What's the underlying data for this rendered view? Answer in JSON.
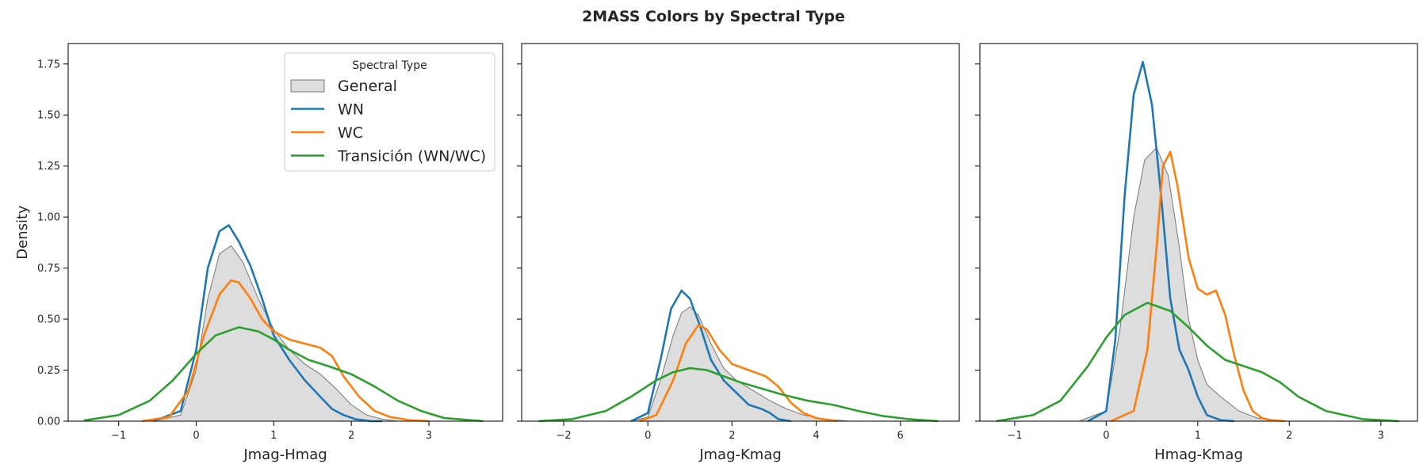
{
  "figure_title": "2MASS Colors by Spectral Type",
  "chart_data": [
    {
      "type": "area",
      "title": "",
      "xlabel": "Jmag-Hmag",
      "ylabel": "Density",
      "xlim": [
        -1.65,
        3.95
      ],
      "ylim": [
        0,
        1.85
      ],
      "xticks": [
        -1,
        0,
        1,
        2,
        3
      ],
      "yticks": [
        0.0,
        0.25,
        0.5,
        0.75,
        1.0,
        1.25,
        1.5,
        1.75
      ],
      "grid": false,
      "legend": {
        "title": "Spectral Type",
        "placement": "top-right"
      },
      "series": [
        {
          "name": "General",
          "fill": true,
          "x": [
            -0.55,
            -0.2,
            0.0,
            0.15,
            0.3,
            0.45,
            0.6,
            0.8,
            1.0,
            1.2,
            1.4,
            1.6,
            1.8,
            2.0,
            2.2,
            2.4,
            2.6
          ],
          "y": [
            0,
            0.03,
            0.25,
            0.6,
            0.82,
            0.86,
            0.78,
            0.6,
            0.45,
            0.35,
            0.28,
            0.23,
            0.16,
            0.08,
            0.03,
            0.01,
            0
          ]
        },
        {
          "name": "WN",
          "fill": false,
          "x": [
            -0.55,
            -0.2,
            0.0,
            0.15,
            0.3,
            0.42,
            0.55,
            0.7,
            0.85,
            1.0,
            1.2,
            1.4,
            1.6,
            1.75,
            1.9,
            2.05,
            2.25,
            2.4
          ],
          "y": [
            0,
            0.05,
            0.35,
            0.75,
            0.93,
            0.96,
            0.88,
            0.76,
            0.6,
            0.42,
            0.3,
            0.2,
            0.12,
            0.06,
            0.03,
            0.01,
            0,
            0
          ]
        },
        {
          "name": "WC",
          "fill": false,
          "x": [
            -0.7,
            -0.35,
            -0.1,
            0.1,
            0.3,
            0.45,
            0.55,
            0.7,
            0.85,
            1.0,
            1.2,
            1.4,
            1.6,
            1.75,
            1.9,
            2.1,
            2.3,
            2.5,
            2.75,
            3.0
          ],
          "y": [
            0,
            0.02,
            0.15,
            0.42,
            0.62,
            0.69,
            0.68,
            0.6,
            0.5,
            0.44,
            0.4,
            0.38,
            0.36,
            0.32,
            0.22,
            0.12,
            0.05,
            0.02,
            0.005,
            0
          ]
        },
        {
          "name": "Transición (WN/WC)",
          "fill": false,
          "x": [
            -1.45,
            -1.0,
            -0.6,
            -0.3,
            0.0,
            0.25,
            0.55,
            0.8,
            1.0,
            1.2,
            1.45,
            1.7,
            2.0,
            2.3,
            2.6,
            2.9,
            3.2,
            3.7
          ],
          "y": [
            0.003,
            0.03,
            0.1,
            0.2,
            0.33,
            0.42,
            0.46,
            0.44,
            0.4,
            0.35,
            0.3,
            0.27,
            0.23,
            0.17,
            0.1,
            0.05,
            0.015,
            0
          ]
        }
      ]
    },
    {
      "type": "area",
      "title": "",
      "xlabel": "Jmag-Kmag",
      "ylabel": "",
      "xlim": [
        -3.0,
        7.4
      ],
      "ylim": [
        0,
        1.85
      ],
      "xticks": [
        -2,
        0,
        2,
        4,
        6
      ],
      "yticks": [
        0.0,
        0.25,
        0.5,
        0.75,
        1.0,
        1.25,
        1.5,
        1.75
      ],
      "grid": false,
      "series": [
        {
          "name": "General",
          "fill": true,
          "x": [
            -0.4,
            0.0,
            0.3,
            0.6,
            0.8,
            1.0,
            1.2,
            1.5,
            1.8,
            2.1,
            2.5,
            2.9,
            3.3,
            3.7,
            4.2,
            4.8
          ],
          "y": [
            0,
            0.02,
            0.2,
            0.42,
            0.53,
            0.56,
            0.52,
            0.38,
            0.26,
            0.2,
            0.15,
            0.1,
            0.06,
            0.03,
            0.01,
            0
          ]
        },
        {
          "name": "WN",
          "fill": false,
          "x": [
            -0.4,
            0.0,
            0.3,
            0.55,
            0.8,
            1.0,
            1.25,
            1.5,
            1.8,
            2.1,
            2.4,
            2.7,
            2.9,
            3.1,
            3.4
          ],
          "y": [
            0,
            0.04,
            0.3,
            0.55,
            0.64,
            0.6,
            0.46,
            0.3,
            0.2,
            0.14,
            0.08,
            0.06,
            0.04,
            0.01,
            0
          ]
        },
        {
          "name": "WC",
          "fill": false,
          "x": [
            -0.2,
            0.2,
            0.6,
            0.9,
            1.2,
            1.4,
            1.7,
            2.0,
            2.4,
            2.8,
            3.1,
            3.4,
            3.7,
            4.0,
            4.5
          ],
          "y": [
            0,
            0.03,
            0.2,
            0.38,
            0.47,
            0.45,
            0.35,
            0.28,
            0.25,
            0.22,
            0.17,
            0.09,
            0.04,
            0.015,
            0
          ]
        },
        {
          "name": "Transición (WN/WC)",
          "fill": false,
          "x": [
            -2.6,
            -1.8,
            -1.0,
            -0.4,
            0.2,
            0.6,
            1.0,
            1.4,
            1.8,
            2.2,
            2.7,
            3.2,
            3.8,
            4.4,
            5.0,
            5.6,
            6.2,
            6.9
          ],
          "y": [
            0,
            0.01,
            0.05,
            0.12,
            0.2,
            0.24,
            0.26,
            0.25,
            0.22,
            0.19,
            0.16,
            0.13,
            0.1,
            0.08,
            0.05,
            0.025,
            0.01,
            0
          ]
        }
      ]
    },
    {
      "type": "area",
      "title": "",
      "xlabel": "Hmag-Kmag",
      "ylabel": "",
      "xlim": [
        -1.38,
        3.4
      ],
      "ylim": [
        0,
        1.85
      ],
      "xticks": [
        -1,
        0,
        1,
        2,
        3
      ],
      "yticks": [
        0.0,
        0.25,
        0.5,
        0.75,
        1.0,
        1.25,
        1.5,
        1.75
      ],
      "grid": false,
      "series": [
        {
          "name": "General",
          "fill": true,
          "x": [
            -0.3,
            0.0,
            0.15,
            0.3,
            0.42,
            0.55,
            0.68,
            0.8,
            0.9,
            1.0,
            1.1,
            1.25,
            1.45,
            1.65,
            1.85,
            2.0
          ],
          "y": [
            0,
            0.05,
            0.45,
            1.0,
            1.28,
            1.34,
            1.2,
            0.85,
            0.5,
            0.3,
            0.18,
            0.12,
            0.05,
            0.015,
            0.005,
            0
          ]
        },
        {
          "name": "WN",
          "fill": false,
          "x": [
            -0.2,
            0.0,
            0.1,
            0.2,
            0.3,
            0.4,
            0.5,
            0.6,
            0.7,
            0.8,
            0.9,
            1.0,
            1.1,
            1.25,
            1.4
          ],
          "y": [
            0,
            0.05,
            0.4,
            1.1,
            1.6,
            1.76,
            1.55,
            1.1,
            0.6,
            0.35,
            0.25,
            0.12,
            0.03,
            0.005,
            0
          ]
        },
        {
          "name": "WC",
          "fill": false,
          "x": [
            0.05,
            0.3,
            0.45,
            0.55,
            0.62,
            0.7,
            0.78,
            0.9,
            1.0,
            1.1,
            1.2,
            1.3,
            1.4,
            1.5,
            1.6,
            1.7,
            1.8,
            1.95
          ],
          "y": [
            0,
            0.05,
            0.35,
            0.85,
            1.25,
            1.32,
            1.15,
            0.8,
            0.65,
            0.62,
            0.64,
            0.52,
            0.32,
            0.15,
            0.05,
            0.015,
            0.005,
            0
          ]
        },
        {
          "name": "Transición (WN/WC)",
          "fill": false,
          "x": [
            -1.2,
            -0.8,
            -0.5,
            -0.2,
            0.0,
            0.2,
            0.45,
            0.7,
            0.9,
            1.1,
            1.3,
            1.5,
            1.7,
            1.9,
            2.1,
            2.4,
            2.8,
            3.2
          ],
          "y": [
            0,
            0.03,
            0.1,
            0.27,
            0.41,
            0.52,
            0.58,
            0.54,
            0.46,
            0.37,
            0.3,
            0.27,
            0.24,
            0.19,
            0.12,
            0.05,
            0.01,
            0
          ]
        }
      ]
    }
  ],
  "series_colors": {
    "General": "#dddddd",
    "General_edge": "#777777",
    "WN": "#1f77b4",
    "WC": "#ff7f0e",
    "Transición (WN/WC)": "#2ca02c"
  }
}
